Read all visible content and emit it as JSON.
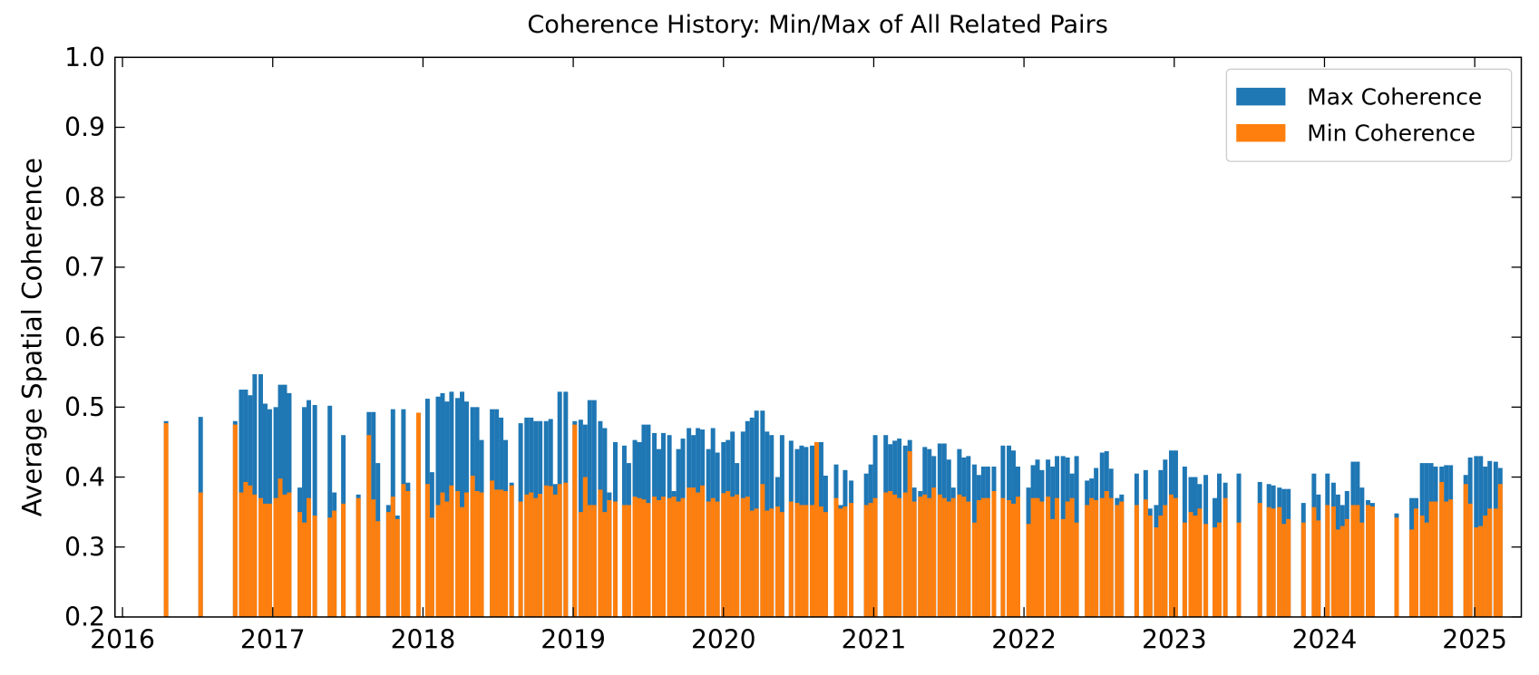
{
  "chart_data": {
    "type": "bar",
    "title": "Coherence History: Min/Max of All Related Pairs",
    "y_label": "Average Spatial Coherence",
    "x": [
      2016.29,
      2016.52,
      2016.75,
      2016.79,
      2016.82,
      2016.85,
      2016.88,
      2016.92,
      2016.95,
      2016.98,
      2017.02,
      2017.05,
      2017.08,
      2017.11,
      2017.18,
      2017.21,
      2017.24,
      2017.28,
      2017.38,
      2017.41,
      2017.47,
      2017.57,
      2017.64,
      2017.67,
      2017.7,
      2017.77,
      2017.8,
      2017.83,
      2017.87,
      2017.9,
      2017.97,
      2018.03,
      2018.06,
      2018.1,
      2018.13,
      2018.16,
      2018.19,
      2018.23,
      2018.26,
      2018.29,
      2018.33,
      2018.36,
      2018.39,
      2018.46,
      2018.49,
      2018.52,
      2018.55,
      2018.59,
      2018.65,
      2018.69,
      2018.72,
      2018.75,
      2018.78,
      2018.82,
      2018.85,
      2018.88,
      2018.91,
      2018.95,
      2019.01,
      2019.05,
      2019.08,
      2019.11,
      2019.14,
      2019.18,
      2019.21,
      2019.24,
      2019.28,
      2019.34,
      2019.37,
      2019.41,
      2019.44,
      2019.47,
      2019.5,
      2019.54,
      2019.57,
      2019.6,
      2019.64,
      2019.67,
      2019.7,
      2019.73,
      2019.77,
      2019.8,
      2019.83,
      2019.86,
      2019.9,
      2019.93,
      2019.96,
      2020.0,
      2020.03,
      2020.06,
      2020.09,
      2020.13,
      2020.16,
      2020.19,
      2020.22,
      2020.26,
      2020.29,
      2020.32,
      2020.36,
      2020.39,
      2020.45,
      2020.49,
      2020.52,
      2020.55,
      2020.59,
      2020.62,
      2020.65,
      2020.68,
      2020.75,
      2020.78,
      2020.81,
      2020.85,
      2020.95,
      2020.98,
      2021.01,
      2021.08,
      2021.11,
      2021.14,
      2021.17,
      2021.21,
      2021.24,
      2021.27,
      2021.31,
      2021.34,
      2021.37,
      2021.4,
      2021.44,
      2021.47,
      2021.5,
      2021.53,
      2021.57,
      2021.6,
      2021.63,
      2021.67,
      2021.7,
      2021.73,
      2021.76,
      2021.8,
      2021.86,
      2021.9,
      2021.93,
      2021.96,
      2022.03,
      2022.06,
      2022.09,
      2022.12,
      2022.16,
      2022.19,
      2022.22,
      2022.26,
      2022.29,
      2022.32,
      2022.35,
      2022.42,
      2022.45,
      2022.48,
      2022.52,
      2022.55,
      2022.58,
      2022.62,
      2022.65,
      2022.75,
      2022.81,
      2022.84,
      2022.88,
      2022.91,
      2022.94,
      2022.98,
      2023.01,
      2023.07,
      2023.11,
      2023.14,
      2023.17,
      2023.21,
      2023.27,
      2023.3,
      2023.34,
      2023.43,
      2023.57,
      2023.63,
      2023.66,
      2023.7,
      2023.73,
      2023.76,
      2023.86,
      2023.93,
      2023.96,
      2024.02,
      2024.06,
      2024.09,
      2024.12,
      2024.15,
      2024.19,
      2024.22,
      2024.25,
      2024.29,
      2024.32,
      2024.48,
      2024.58,
      2024.61,
      2024.65,
      2024.68,
      2024.71,
      2024.74,
      2024.78,
      2024.81,
      2024.84,
      2024.94,
      2024.97,
      2025.01,
      2025.04,
      2025.07,
      2025.1,
      2025.14,
      2025.17
    ],
    "series": [
      {
        "name": "Max Coherence",
        "color": "#1f77b4",
        "values": [
          0.48,
          0.486,
          0.48,
          0.525,
          0.525,
          0.517,
          0.547,
          0.547,
          0.505,
          0.497,
          0.5,
          0.532,
          0.532,
          0.52,
          0.385,
          0.5,
          0.51,
          0.503,
          0.502,
          0.378,
          0.46,
          0.375,
          0.493,
          0.493,
          0.42,
          0.36,
          0.497,
          0.345,
          0.497,
          0.392,
          0.492,
          0.512,
          0.407,
          0.515,
          0.52,
          0.508,
          0.522,
          0.513,
          0.522,
          0.508,
          0.5,
          0.5,
          0.453,
          0.497,
          0.497,
          0.485,
          0.453,
          0.392,
          0.477,
          0.485,
          0.485,
          0.48,
          0.48,
          0.48,
          0.483,
          0.39,
          0.522,
          0.522,
          0.48,
          0.482,
          0.475,
          0.51,
          0.51,
          0.48,
          0.47,
          0.378,
          0.45,
          0.445,
          0.42,
          0.453,
          0.45,
          0.475,
          0.475,
          0.463,
          0.44,
          0.463,
          0.46,
          0.38,
          0.44,
          0.455,
          0.47,
          0.46,
          0.47,
          0.468,
          0.44,
          0.47,
          0.435,
          0.45,
          0.453,
          0.465,
          0.42,
          0.465,
          0.48,
          0.485,
          0.495,
          0.495,
          0.465,
          0.46,
          0.4,
          0.46,
          0.452,
          0.44,
          0.445,
          0.443,
          0.445,
          0.45,
          0.45,
          0.402,
          0.418,
          0.36,
          0.41,
          0.395,
          0.405,
          0.418,
          0.46,
          0.46,
          0.447,
          0.452,
          0.455,
          0.445,
          0.453,
          0.385,
          0.38,
          0.443,
          0.44,
          0.43,
          0.448,
          0.448,
          0.425,
          0.385,
          0.44,
          0.428,
          0.43,
          0.418,
          0.403,
          0.415,
          0.415,
          0.415,
          0.445,
          0.445,
          0.438,
          0.415,
          0.385,
          0.417,
          0.425,
          0.41,
          0.425,
          0.415,
          0.43,
          0.43,
          0.428,
          0.405,
          0.43,
          0.395,
          0.398,
          0.413,
          0.435,
          0.437,
          0.412,
          0.37,
          0.375,
          0.405,
          0.41,
          0.355,
          0.36,
          0.41,
          0.425,
          0.438,
          0.438,
          0.415,
          0.4,
          0.4,
          0.39,
          0.403,
          0.37,
          0.405,
          0.392,
          0.405,
          0.393,
          0.39,
          0.388,
          0.385,
          0.383,
          0.383,
          0.363,
          0.405,
          0.375,
          0.405,
          0.392,
          0.375,
          0.36,
          0.38,
          0.422,
          0.422,
          0.385,
          0.367,
          0.363,
          0.348,
          0.37,
          0.37,
          0.42,
          0.42,
          0.42,
          0.415,
          0.415,
          0.417,
          0.417,
          0.403,
          0.428,
          0.43,
          0.43,
          0.415,
          0.423,
          0.422,
          0.413
        ]
      },
      {
        "name": "Min Coherence",
        "color": "#ff7f0e",
        "values": [
          0.477,
          0.378,
          0.475,
          0.378,
          0.393,
          0.388,
          0.375,
          0.37,
          0.362,
          0.362,
          0.37,
          0.398,
          0.375,
          0.378,
          0.35,
          0.335,
          0.37,
          0.345,
          0.342,
          0.352,
          0.362,
          0.37,
          0.46,
          0.368,
          0.337,
          0.35,
          0.372,
          0.34,
          0.39,
          0.38,
          0.492,
          0.39,
          0.342,
          0.36,
          0.378,
          0.365,
          0.388,
          0.38,
          0.357,
          0.378,
          0.402,
          0.38,
          0.378,
          0.395,
          0.382,
          0.382,
          0.38,
          0.388,
          0.365,
          0.375,
          0.378,
          0.37,
          0.376,
          0.388,
          0.387,
          0.375,
          0.39,
          0.392,
          0.475,
          0.35,
          0.4,
          0.36,
          0.36,
          0.382,
          0.35,
          0.367,
          0.365,
          0.36,
          0.36,
          0.372,
          0.37,
          0.368,
          0.363,
          0.372,
          0.367,
          0.372,
          0.37,
          0.372,
          0.365,
          0.37,
          0.385,
          0.385,
          0.378,
          0.388,
          0.365,
          0.37,
          0.365,
          0.377,
          0.38,
          0.372,
          0.375,
          0.37,
          0.372,
          0.352,
          0.355,
          0.39,
          0.352,
          0.355,
          0.358,
          0.35,
          0.365,
          0.363,
          0.36,
          0.36,
          0.36,
          0.45,
          0.358,
          0.35,
          0.37,
          0.355,
          0.358,
          0.363,
          0.36,
          0.363,
          0.37,
          0.378,
          0.38,
          0.375,
          0.37,
          0.378,
          0.437,
          0.365,
          0.372,
          0.375,
          0.37,
          0.385,
          0.375,
          0.37,
          0.365,
          0.37,
          0.375,
          0.372,
          0.365,
          0.335,
          0.367,
          0.37,
          0.37,
          0.38,
          0.37,
          0.367,
          0.362,
          0.372,
          0.333,
          0.37,
          0.37,
          0.365,
          0.372,
          0.34,
          0.37,
          0.34,
          0.365,
          0.37,
          0.335,
          0.36,
          0.37,
          0.367,
          0.37,
          0.38,
          0.37,
          0.36,
          0.365,
          0.36,
          0.368,
          0.345,
          0.328,
          0.345,
          0.36,
          0.375,
          0.37,
          0.335,
          0.35,
          0.345,
          0.355,
          0.333,
          0.328,
          0.335,
          0.37,
          0.335,
          0.363,
          0.357,
          0.355,
          0.357,
          0.333,
          0.34,
          0.335,
          0.357,
          0.338,
          0.36,
          0.358,
          0.325,
          0.33,
          0.34,
          0.36,
          0.36,
          0.335,
          0.36,
          0.358,
          0.342,
          0.325,
          0.355,
          0.345,
          0.335,
          0.365,
          0.365,
          0.393,
          0.365,
          0.368,
          0.39,
          0.362,
          0.328,
          0.33,
          0.345,
          0.355,
          0.355,
          0.39
        ]
      }
    ],
    "xlim": [
      2015.95,
      2025.31
    ],
    "xticks": [
      2016,
      2017,
      2018,
      2019,
      2020,
      2021,
      2022,
      2023,
      2024,
      2025
    ],
    "ylim": [
      0.2,
      1
    ],
    "yticks": [
      0.2,
      0.3,
      0.4,
      0.5,
      0.6,
      0.7,
      0.8,
      0.9,
      {
        "value": 1,
        "label": "1.0"
      }
    ],
    "legend_position": "upper right"
  }
}
